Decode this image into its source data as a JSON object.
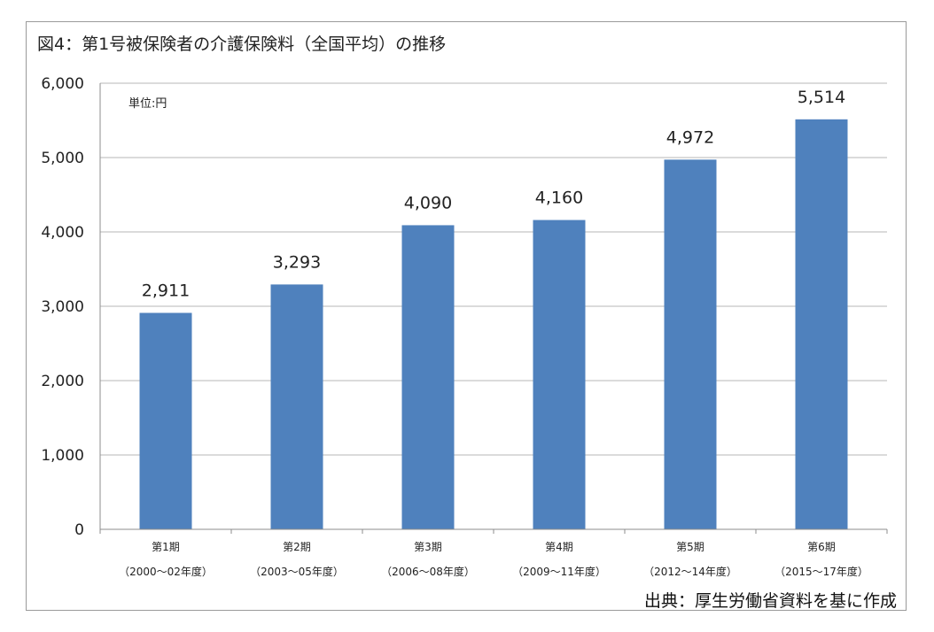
{
  "chart_data": {
    "type": "bar",
    "title": "図4：第1号被保険者の介護保険料（全国平均）の推移",
    "unit_label": "単位:円",
    "source": "出典：厚生労働省資料を基に作成",
    "categories": [
      {
        "label": "第1期",
        "period": "（2000～02年度）"
      },
      {
        "label": "第2期",
        "period": "（2003～05年度）"
      },
      {
        "label": "第3期",
        "period": "（2006～08年度）"
      },
      {
        "label": "第4期",
        "period": "（2009～11年度）"
      },
      {
        "label": "第5期",
        "period": "（2012～14年度）"
      },
      {
        "label": "第6期",
        "period": "（2015～17年度）"
      }
    ],
    "values": [
      2911,
      3293,
      4090,
      4160,
      4972,
      5514
    ],
    "value_labels": [
      "2,911",
      "3,293",
      "4,090",
      "4,160",
      "4,972",
      "5,514"
    ],
    "ylim": [
      0,
      6000
    ],
    "yticks": [
      0,
      1000,
      2000,
      3000,
      4000,
      5000,
      6000
    ],
    "ytick_labels": [
      "0",
      "1,000",
      "2,000",
      "3,000",
      "4,000",
      "5,000",
      "6,000"
    ],
    "grid": true,
    "colors": {
      "bar": "#4f81bd",
      "grid": "#b7b7b7",
      "axis": "#8c8c8c"
    }
  }
}
